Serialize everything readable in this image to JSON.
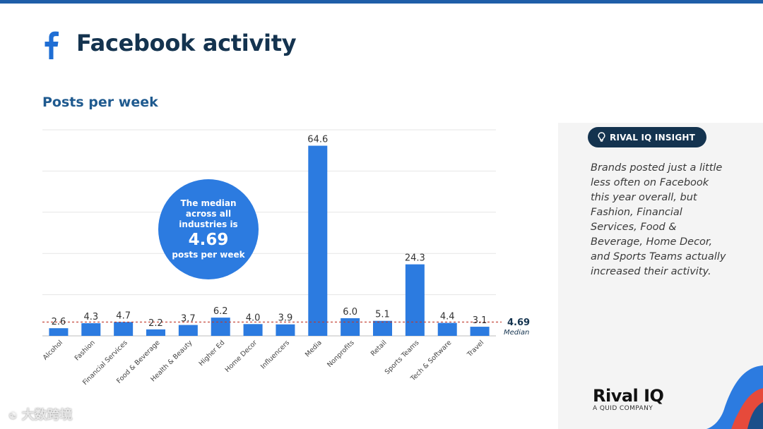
{
  "header": {
    "title": "Facebook activity",
    "icon": "facebook-icon",
    "accent_color": "#1f5ea8"
  },
  "chart_data": {
    "type": "bar",
    "title": "Posts per week",
    "categories": [
      "Alcohol",
      "Fashion",
      "Financial Services",
      "Food & Beverage",
      "Health & Beauty",
      "Higher Ed",
      "Home Decor",
      "Influencers",
      "Media",
      "Nonprofits",
      "Retail",
      "Sports Teams",
      "Tech & Software",
      "Travel"
    ],
    "values": [
      2.6,
      4.3,
      4.7,
      2.2,
      3.7,
      6.2,
      4.0,
      3.9,
      64.6,
      6.0,
      5.1,
      24.3,
      4.4,
      3.1
    ],
    "value_labels": [
      "2.6",
      "4.3",
      "4.7",
      "2.2",
      "3.7",
      "6.2",
      "4.0",
      "3.9",
      "64.6",
      "6.0",
      "5.1",
      "24.3",
      "4.4",
      "3.1"
    ],
    "ylim": [
      0,
      70
    ],
    "grid": true,
    "bar_color": "#2c7be0",
    "median": {
      "value": 4.69,
      "value_label": "4.69",
      "label": "Median",
      "color": "#c0392b"
    }
  },
  "callout": {
    "line1": "The median",
    "line2": "across all",
    "line3": "industries is",
    "value": "4.69",
    "line4": "posts per week"
  },
  "insight": {
    "badge_label": "RIVAL IQ INSIGHT",
    "badge_icon": "lightbulb-icon",
    "text": "Brands posted just a little less often on Facebook this year overall, but Fashion, Financial Services, Food & Beverage, Home Decor, and Sports Teams actually increased their activity."
  },
  "brand": {
    "name": "Rival IQ",
    "tagline": "A QUID COMPANY"
  },
  "watermark": {
    "text": "大数跨境"
  }
}
